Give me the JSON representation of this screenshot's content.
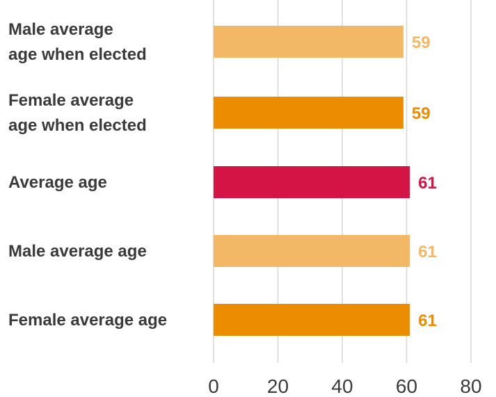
{
  "chart_data": {
    "type": "bar",
    "orientation": "horizontal",
    "categories": [
      [
        "Male average",
        "age when elected"
      ],
      [
        "Female average",
        "age when elected"
      ],
      [
        "Average age"
      ],
      [
        "Male average age"
      ],
      [
        "Female average age"
      ]
    ],
    "values": [
      59,
      59,
      61,
      61,
      61
    ],
    "value_labels": [
      "59",
      "59",
      "61",
      "61",
      "61"
    ],
    "colors": [
      "#f2b866",
      "#ec8c00",
      "#d41444",
      "#f2b866",
      "#ec8c00"
    ],
    "xlim": [
      0,
      80
    ],
    "xticks": [
      "0",
      "20",
      "40",
      "60",
      "80"
    ],
    "grid": true
  }
}
